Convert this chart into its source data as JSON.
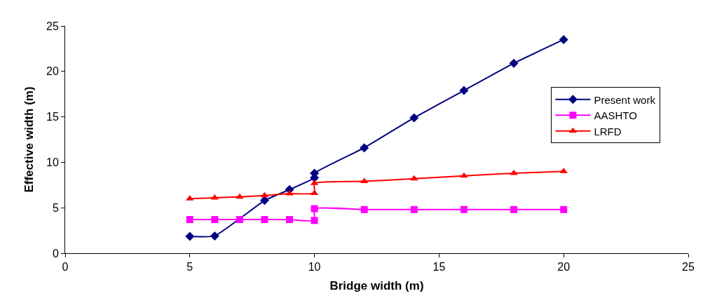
{
  "chart_data": {
    "type": "line",
    "xlabel": "Bridge width (m)",
    "ylabel": "Effective width (m)",
    "xlim": [
      0,
      25
    ],
    "xticks": [
      0,
      5,
      10,
      15,
      20,
      25
    ],
    "ylim": [
      0,
      25
    ],
    "yticks": [
      0,
      5,
      10,
      15,
      20,
      25
    ],
    "legend": "right",
    "line_style": "solid",
    "series": [
      {
        "name": "Present work",
        "color": "#000080",
        "marker": "diamond",
        "x": [
          5,
          6,
          7,
          8,
          9,
          10,
          10,
          12,
          14,
          16,
          18,
          20
        ],
        "values": [
          1.85,
          1.9,
          null,
          5.8,
          7.0,
          8.3,
          8.8,
          11.6,
          14.9,
          17.9,
          20.9,
          23.5
        ]
      },
      {
        "name": "AASHTO",
        "color": "#ff00ff",
        "marker": "square",
        "x": [
          5,
          6,
          7,
          8,
          9,
          10,
          10,
          12,
          14,
          16,
          18,
          20
        ],
        "values": [
          3.7,
          3.7,
          3.7,
          3.7,
          3.7,
          3.6,
          4.9,
          4.8,
          4.8,
          4.8,
          4.8,
          4.8
        ]
      },
      {
        "name": "LRFD",
        "color": "#ff0000",
        "marker": "triangle",
        "x": [
          5,
          6,
          7,
          8,
          9,
          10,
          10,
          12,
          14,
          16,
          18,
          20
        ],
        "values": [
          6.0,
          6.1,
          6.2,
          6.35,
          6.55,
          6.6,
          7.7,
          7.9,
          8.2,
          8.5,
          8.8,
          9.0
        ]
      }
    ]
  }
}
